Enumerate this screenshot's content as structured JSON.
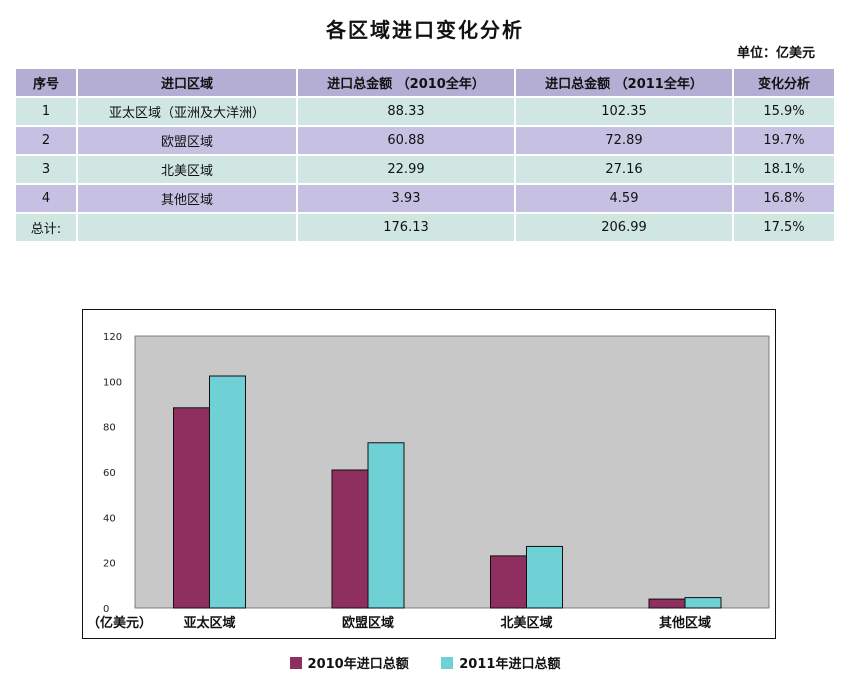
{
  "title": "各区域进口变化分析",
  "unit": "单位：亿美元",
  "table": {
    "headers": [
      "序号",
      "进口区域",
      "进口总金额 （2010全年）",
      "进口总金额 （2011全年）",
      "变化分析"
    ],
    "rows": [
      [
        "1",
        "亚太区域（亚洲及大洋洲）",
        "88.33",
        "102.35",
        "15.9%"
      ],
      [
        "2",
        "欧盟区域",
        "60.88",
        "72.89",
        "19.7%"
      ],
      [
        "3",
        "北美区域",
        "22.99",
        "27.16",
        "18.1%"
      ],
      [
        "4",
        "其他区域",
        "3.93",
        "4.59",
        "16.8%"
      ],
      [
        "总计:",
        "",
        "176.13",
        "206.99",
        "17.5%"
      ]
    ]
  },
  "chart_data": {
    "type": "bar",
    "categories": [
      "亚太区域",
      "欧盟区域",
      "北美区域",
      "其他区域"
    ],
    "series": [
      {
        "name": "2010年进口总额",
        "values": [
          88.33,
          60.88,
          22.99,
          3.93
        ],
        "color": "#8f2f5f"
      },
      {
        "name": "2011年进口总额",
        "values": [
          102.35,
          72.89,
          27.16,
          4.59
        ],
        "color": "#6fd0d6"
      }
    ],
    "ylim": [
      0,
      120
    ],
    "yticks": [
      "0",
      "20",
      "40",
      "60",
      "80",
      "100",
      "120"
    ],
    "ylabel": "（亿美元）",
    "plot_bg": "#c8c8c8",
    "legend_position": "bottom",
    "grid": false
  }
}
